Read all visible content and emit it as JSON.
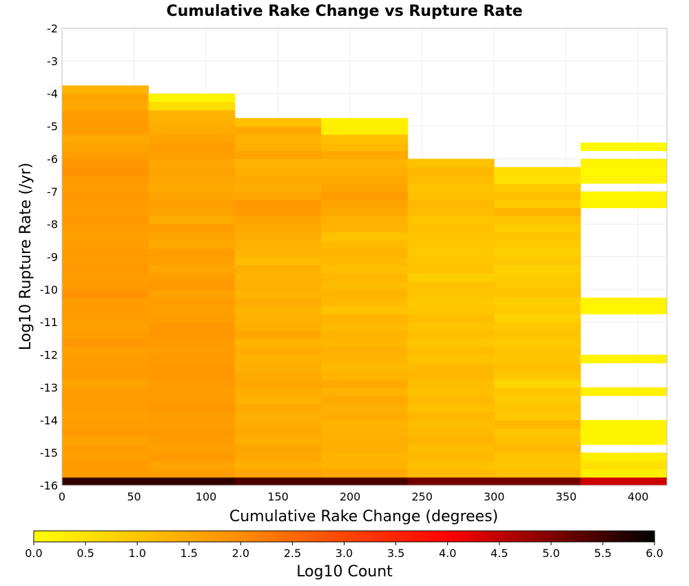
{
  "chart_data": {
    "type": "heatmap",
    "title": "Cumulative Rake Change vs Rupture Rate",
    "xlabel": "Cumulative Rake Change (degrees)",
    "ylabel": "Log10 Rupture Rate (/yr)",
    "xlim": [
      0,
      420
    ],
    "ylim": [
      -16,
      -2
    ],
    "x_ticks": [
      "0",
      "50",
      "100",
      "150",
      "200",
      "250",
      "300",
      "350",
      "400"
    ],
    "y_ticks": [
      "-2",
      "-3",
      "-4",
      "-5",
      "-6",
      "-7",
      "-8",
      "-9",
      "-10",
      "-11",
      "-12",
      "-13",
      "-14",
      "-15",
      "-16"
    ],
    "x_bin_edges": [
      0,
      60,
      120,
      180,
      240,
      300,
      360,
      420
    ],
    "y_bin_width": 0.25,
    "y_bins_start": -16,
    "grid": true,
    "colorbar": {
      "label": "Log10 Count",
      "range": [
        0,
        6
      ],
      "ticks": [
        "0.0",
        "0.5",
        "1.0",
        "1.5",
        "2.0",
        "2.5",
        "3.0",
        "3.5",
        "4.0",
        "4.5",
        "5.0",
        "5.5",
        "6.0"
      ],
      "colors": [
        "#ffff00",
        "#ff8c00",
        "#ff0000",
        "#000000"
      ]
    },
    "columns": [
      {
        "x_start": 0,
        "x_end": 60,
        "values": [
          5.6,
          1.7,
          1.75,
          1.65,
          1.7,
          1.6,
          1.75,
          1.7,
          1.65,
          1.7,
          1.75,
          1.7,
          1.6,
          1.75,
          1.7,
          1.7,
          1.65,
          1.8,
          1.7,
          1.65,
          1.7,
          1.75,
          1.7,
          1.9,
          1.75,
          1.7,
          1.8,
          1.7,
          1.75,
          1.7,
          1.65,
          1.7,
          1.8,
          1.7,
          1.75,
          1.8,
          1.7,
          1.75,
          1.9,
          1.85,
          1.7,
          1.6,
          1.5,
          1.7,
          1.75,
          1.7,
          1.5,
          1.6,
          1.3
        ]
      },
      {
        "x_start": 60,
        "x_end": 120,
        "values": [
          5.6,
          1.7,
          1.6,
          1.75,
          1.65,
          1.7,
          1.75,
          1.7,
          1.7,
          1.8,
          1.75,
          1.7,
          1.75,
          1.8,
          1.8,
          1.75,
          1.7,
          1.75,
          1.8,
          1.8,
          1.7,
          1.65,
          1.7,
          1.6,
          1.8,
          1.7,
          1.55,
          1.65,
          1.7,
          1.5,
          1.6,
          1.7,
          1.45,
          1.6,
          1.65,
          1.6,
          1.5,
          1.55,
          1.6,
          1.55,
          1.65,
          1.7,
          1.6,
          1.45,
          1.4,
          1.3,
          0.6,
          0.2
        ]
      },
      {
        "x_start": 120,
        "x_end": 180,
        "values": [
          5.4,
          1.6,
          1.4,
          1.5,
          1.55,
          1.4,
          1.5,
          1.45,
          1.4,
          1.5,
          1.35,
          1.45,
          1.55,
          1.5,
          1.4,
          1.35,
          1.45,
          1.3,
          1.55,
          1.4,
          1.35,
          1.3,
          1.45,
          1.3,
          1.4,
          1.3,
          1.4,
          1.15,
          1.3,
          1.35,
          1.45,
          1.5,
          1.6,
          1.75,
          1.8,
          1.55,
          1.45,
          1.5,
          1.4,
          1.3,
          1.6,
          1.4,
          1.35,
          1.5,
          1.1
        ]
      },
      {
        "x_start": 180,
        "x_end": 240,
        "values": [
          5.4,
          1.5,
          1.35,
          1.3,
          1.4,
          1.4,
          1.35,
          1.3,
          1.45,
          1.4,
          1.5,
          1.35,
          1.5,
          1.3,
          1.2,
          1.3,
          1.35,
          1.25,
          1.3,
          1.2,
          1.3,
          1.05,
          1.2,
          1.3,
          1.15,
          1.25,
          1.1,
          1.2,
          1.3,
          1.2,
          1.05,
          1.3,
          1.35,
          1.5,
          1.6,
          1.7,
          1.6,
          1.5,
          1.4,
          1.3,
          1.5,
          1.2,
          1.1,
          0.3,
          0.25
        ]
      },
      {
        "x_start": 240,
        "x_end": 300,
        "values": [
          5.1,
          1.2,
          1.1,
          1.2,
          1.15,
          1.3,
          1.2,
          1.15,
          1.25,
          1.1,
          1.2,
          1.1,
          1.15,
          1.25,
          1.2,
          1.05,
          1.15,
          1.0,
          1.1,
          1.05,
          1.15,
          1.0,
          0.95,
          1.05,
          1.1,
          0.85,
          1.05,
          1.0,
          0.95,
          1.0,
          1.05,
          1.1,
          1.0,
          1.15,
          1.2,
          1.1,
          1.05,
          1.15,
          1.25,
          1.05
        ]
      },
      {
        "x_start": 300,
        "x_end": 360,
        "values": [
          5.1,
          1.1,
          1.0,
          1.05,
          1.2,
          1.1,
          1.0,
          1.25,
          0.95,
          1.05,
          0.9,
          1.0,
          0.7,
          1.0,
          1.1,
          1.0,
          1.05,
          0.9,
          1.05,
          0.95,
          0.8,
          0.9,
          0.85,
          1.0,
          0.95,
          0.9,
          0.8,
          0.95,
          0.8,
          0.9,
          1.0,
          0.85,
          1.05,
          1.3,
          0.9,
          1.1,
          0.9,
          0.5,
          0.6
        ]
      },
      {
        "x_start": 360,
        "x_end": 420,
        "values": [
          4.4,
          0.3,
          0.5,
          0.3,
          null,
          0.2,
          0.2,
          0.2,
          null,
          null,
          null,
          0.25,
          null,
          null,
          null,
          0.2,
          null,
          null,
          null,
          null,
          null,
          0.15,
          0.2,
          null,
          null,
          null,
          null,
          null,
          null,
          null,
          null,
          null,
          null,
          null,
          0.2,
          0.15,
          null,
          0.2,
          0.1,
          0.2,
          null,
          0.1
        ]
      }
    ]
  }
}
